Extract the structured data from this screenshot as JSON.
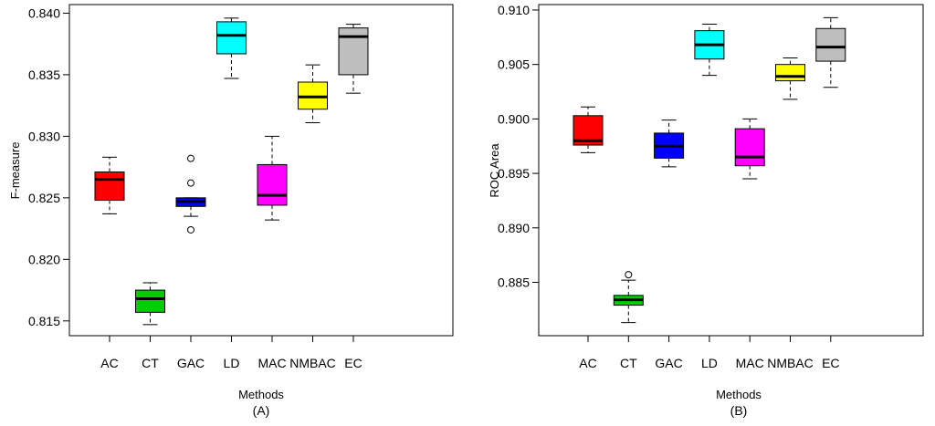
{
  "chart_data": [
    {
      "type": "boxplot",
      "title": "",
      "xlabel": "Methods",
      "sublabel": "(A)",
      "ylabel": "F-measure",
      "ylim": [
        0.8138,
        0.8407
      ],
      "yticks": [
        0.815,
        0.82,
        0.825,
        0.83,
        0.835,
        0.84
      ],
      "ytick_labels": [
        "0.815",
        "0.820",
        "0.825",
        "0.830",
        "0.835",
        "0.840"
      ],
      "categories": [
        "AC",
        "CT",
        "GAC",
        "LD",
        "MAC",
        "NMBAC",
        "EC"
      ],
      "boxes": [
        {
          "name": "AC",
          "color": "#ff0000",
          "whisker_low": 0.8237,
          "q1": 0.8248,
          "median": 0.8265,
          "q3": 0.8271,
          "whisker_high": 0.8283,
          "outliers": []
        },
        {
          "name": "CT",
          "color": "#00cc00",
          "whisker_low": 0.8147,
          "q1": 0.8157,
          "median": 0.8168,
          "q3": 0.8175,
          "whisker_high": 0.8181,
          "outliers": []
        },
        {
          "name": "GAC",
          "color": "#0000ff",
          "whisker_low": 0.8235,
          "q1": 0.8243,
          "median": 0.8247,
          "q3": 0.825,
          "whisker_high": 0.825,
          "outliers": [
            0.8282,
            0.8262,
            0.8224
          ]
        },
        {
          "name": "LD",
          "color": "#00ffff",
          "whisker_low": 0.8347,
          "q1": 0.8367,
          "median": 0.8382,
          "q3": 0.8393,
          "whisker_high": 0.8396,
          "outliers": []
        },
        {
          "name": "MAC",
          "color": "#ff00ff",
          "whisker_low": 0.8232,
          "q1": 0.8244,
          "median": 0.8252,
          "q3": 0.8277,
          "whisker_high": 0.83,
          "outliers": []
        },
        {
          "name": "NMBAC",
          "color": "#ffff00",
          "whisker_low": 0.8311,
          "q1": 0.8322,
          "median": 0.8332,
          "q3": 0.8344,
          "whisker_high": 0.8358,
          "outliers": []
        },
        {
          "name": "EC",
          "color": "#bebebe",
          "whisker_low": 0.8335,
          "q1": 0.835,
          "median": 0.8381,
          "q3": 0.8388,
          "whisker_high": 0.8391,
          "outliers": []
        }
      ]
    },
    {
      "type": "boxplot",
      "title": "",
      "xlabel": "Methods",
      "sublabel": "(B)",
      "ylabel": "ROC Area",
      "ylim": [
        0.8801,
        0.9105
      ],
      "yticks": [
        0.885,
        0.89,
        0.895,
        0.9,
        0.905,
        0.91
      ],
      "ytick_labels": [
        "0.885",
        "0.890",
        "0.895",
        "0.900",
        "0.905",
        "0.910"
      ],
      "categories": [
        "AC",
        "CT",
        "GAC",
        "LD",
        "MAC",
        "NMBAC",
        "EC"
      ],
      "boxes": [
        {
          "name": "AC",
          "color": "#ff0000",
          "whisker_low": 0.8969,
          "q1": 0.8976,
          "median": 0.898,
          "q3": 0.9003,
          "whisker_high": 0.9011,
          "outliers": []
        },
        {
          "name": "CT",
          "color": "#00cc00",
          "whisker_low": 0.8813,
          "q1": 0.8829,
          "median": 0.8834,
          "q3": 0.8838,
          "whisker_high": 0.8852,
          "outliers": [
            0.8857
          ]
        },
        {
          "name": "GAC",
          "color": "#0000ff",
          "whisker_low": 0.8956,
          "q1": 0.8964,
          "median": 0.8975,
          "q3": 0.8987,
          "whisker_high": 0.8999,
          "outliers": []
        },
        {
          "name": "LD",
          "color": "#00ffff",
          "whisker_low": 0.904,
          "q1": 0.9055,
          "median": 0.9068,
          "q3": 0.9081,
          "whisker_high": 0.9087,
          "outliers": []
        },
        {
          "name": "MAC",
          "color": "#ff00ff",
          "whisker_low": 0.8945,
          "q1": 0.8957,
          "median": 0.8965,
          "q3": 0.8991,
          "whisker_high": 0.9,
          "outliers": []
        },
        {
          "name": "NMBAC",
          "color": "#ffff00",
          "whisker_low": 0.9018,
          "q1": 0.9035,
          "median": 0.9039,
          "q3": 0.905,
          "whisker_high": 0.9056,
          "outliers": []
        },
        {
          "name": "EC",
          "color": "#bebebe",
          "whisker_low": 0.9029,
          "q1": 0.9053,
          "median": 0.9066,
          "q3": 0.9083,
          "whisker_high": 0.9093,
          "outliers": []
        }
      ]
    }
  ]
}
